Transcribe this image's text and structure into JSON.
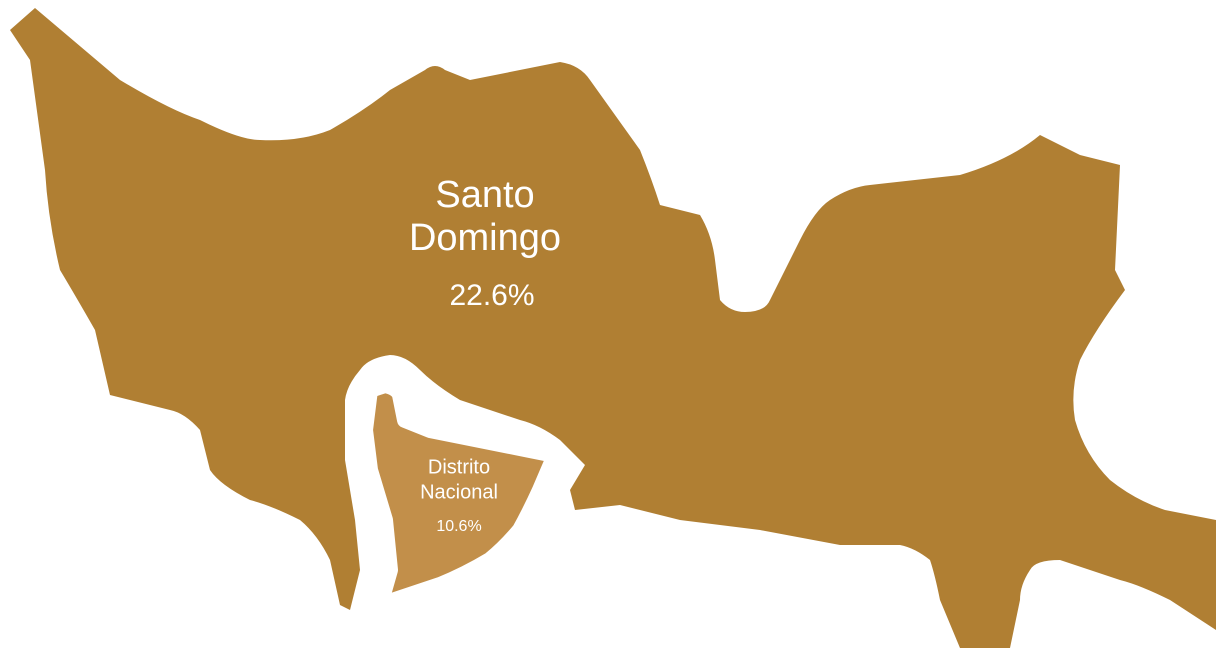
{
  "regions": [
    {
      "name_lines": [
        "Santo",
        "Domingo"
      ],
      "share": "22.6%"
    },
    {
      "name_lines": [
        "Distrito",
        "Nacional"
      ],
      "share": "10.6%"
    }
  ]
}
